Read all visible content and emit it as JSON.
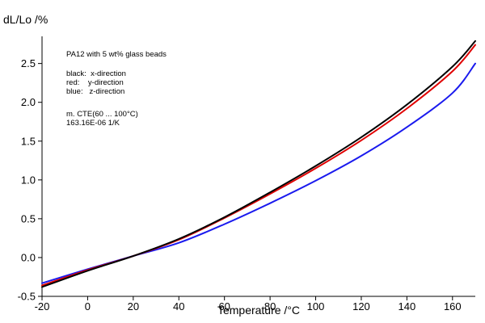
{
  "chart_data": {
    "type": "line",
    "title": "",
    "xlabel": "Temperature /°C",
    "ylabel": "dL/Lo /%",
    "xlim": [
      -20,
      170
    ],
    "ylim": [
      -0.5,
      2.85
    ],
    "x_ticks": [
      -20,
      0,
      20,
      40,
      60,
      80,
      100,
      120,
      140,
      160
    ],
    "y_ticks": [
      {
        "value": -0.5,
        "label": "-0.5"
      },
      {
        "value": 0.0,
        "label": "0.0"
      },
      {
        "value": 0.5,
        "label": "0.5"
      },
      {
        "value": 1.0,
        "label": "1.0"
      },
      {
        "value": 1.5,
        "label": "1.5"
      },
      {
        "value": 2.0,
        "label": "2.0"
      },
      {
        "value": 2.5,
        "label": "2.5"
      }
    ],
    "grid": false,
    "annotations": [
      "PA12 with 5 wt% glass beads",
      "black:  x-direction",
      "red:    y-direction",
      "blue:   z-direction",
      "m. CTE(60 ... 100°C)",
      "163.16E-06 1/K"
    ],
    "series": [
      {
        "color": "#000000",
        "x": [
          -20,
          0,
          20,
          40,
          60,
          80,
          100,
          120,
          140,
          160,
          170
        ],
        "y": [
          -0.38,
          -0.17,
          0.02,
          0.24,
          0.52,
          0.84,
          1.18,
          1.55,
          1.97,
          2.46,
          2.79
        ]
      },
      {
        "color": "#e00000",
        "x": [
          -20,
          0,
          20,
          40,
          60,
          80,
          100,
          120,
          140,
          160,
          170
        ],
        "y": [
          -0.36,
          -0.16,
          0.02,
          0.23,
          0.51,
          0.82,
          1.15,
          1.51,
          1.92,
          2.4,
          2.74
        ]
      },
      {
        "color": "#1a1aee",
        "x": [
          -20,
          0,
          20,
          40,
          60,
          80,
          100,
          120,
          140,
          160,
          170
        ],
        "y": [
          -0.33,
          -0.15,
          0.02,
          0.19,
          0.43,
          0.7,
          0.99,
          1.31,
          1.68,
          2.12,
          2.5
        ]
      }
    ]
  }
}
